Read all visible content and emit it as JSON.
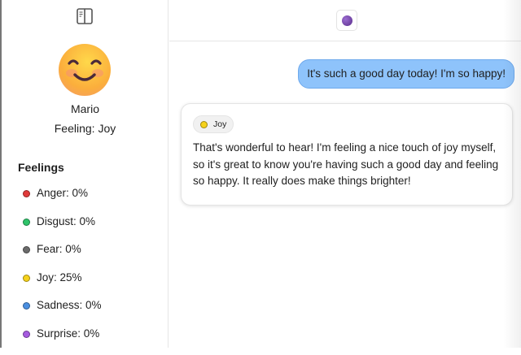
{
  "sidebar": {
    "user_name": "Mario",
    "feeling_label": "Feeling: Joy",
    "feelings_heading": "Feelings",
    "feelings": [
      {
        "label": "Anger: 0%",
        "color": "#e03a3a"
      },
      {
        "label": "Disgust: 0%",
        "color": "#2fc46a"
      },
      {
        "label": "Fear: 0%",
        "color": "#6b6b6b"
      },
      {
        "label": "Joy: 25%",
        "color": "#f6d21b"
      },
      {
        "label": "Sadness: 0%",
        "color": "#4a8fe0"
      },
      {
        "label": "Surprise: 0%",
        "color": "#a65be0"
      }
    ]
  },
  "chat": {
    "messages": [
      {
        "role": "user",
        "text": "It's such a good day today! I'm so happy!"
      },
      {
        "role": "assistant",
        "emotion": "Joy",
        "emotion_color": "#f6d21b",
        "text": "That's wonderful to hear! I'm feeling a nice touch of joy myself, so it's great to know you're having such a good day and feeling so happy. It really does make things brighter!"
      }
    ]
  }
}
